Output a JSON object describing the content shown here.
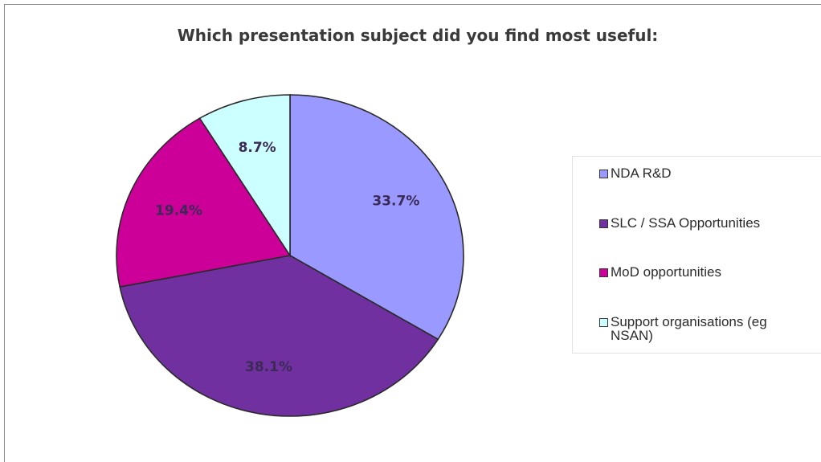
{
  "chart_data": {
    "type": "pie",
    "title": "Which presentation subject did you find most useful:",
    "slices": [
      {
        "label": "NDA R&D",
        "value": 33.7,
        "display": "33.7%",
        "color": "#9999ff"
      },
      {
        "label": "SLC / SSA Opportunities",
        "value": 38.1,
        "display": "38.1%",
        "color": "#7030a0"
      },
      {
        "label": "MoD opportunities",
        "value": 19.4,
        "display": "19.4%",
        "color": "#cc0099"
      },
      {
        "label": "Support organisations (eg NSAN)",
        "value": 8.7,
        "display": "8.7%",
        "color": "#ccffff"
      }
    ],
    "legend_position": "right",
    "start": "12 o'clock, clockwise"
  }
}
